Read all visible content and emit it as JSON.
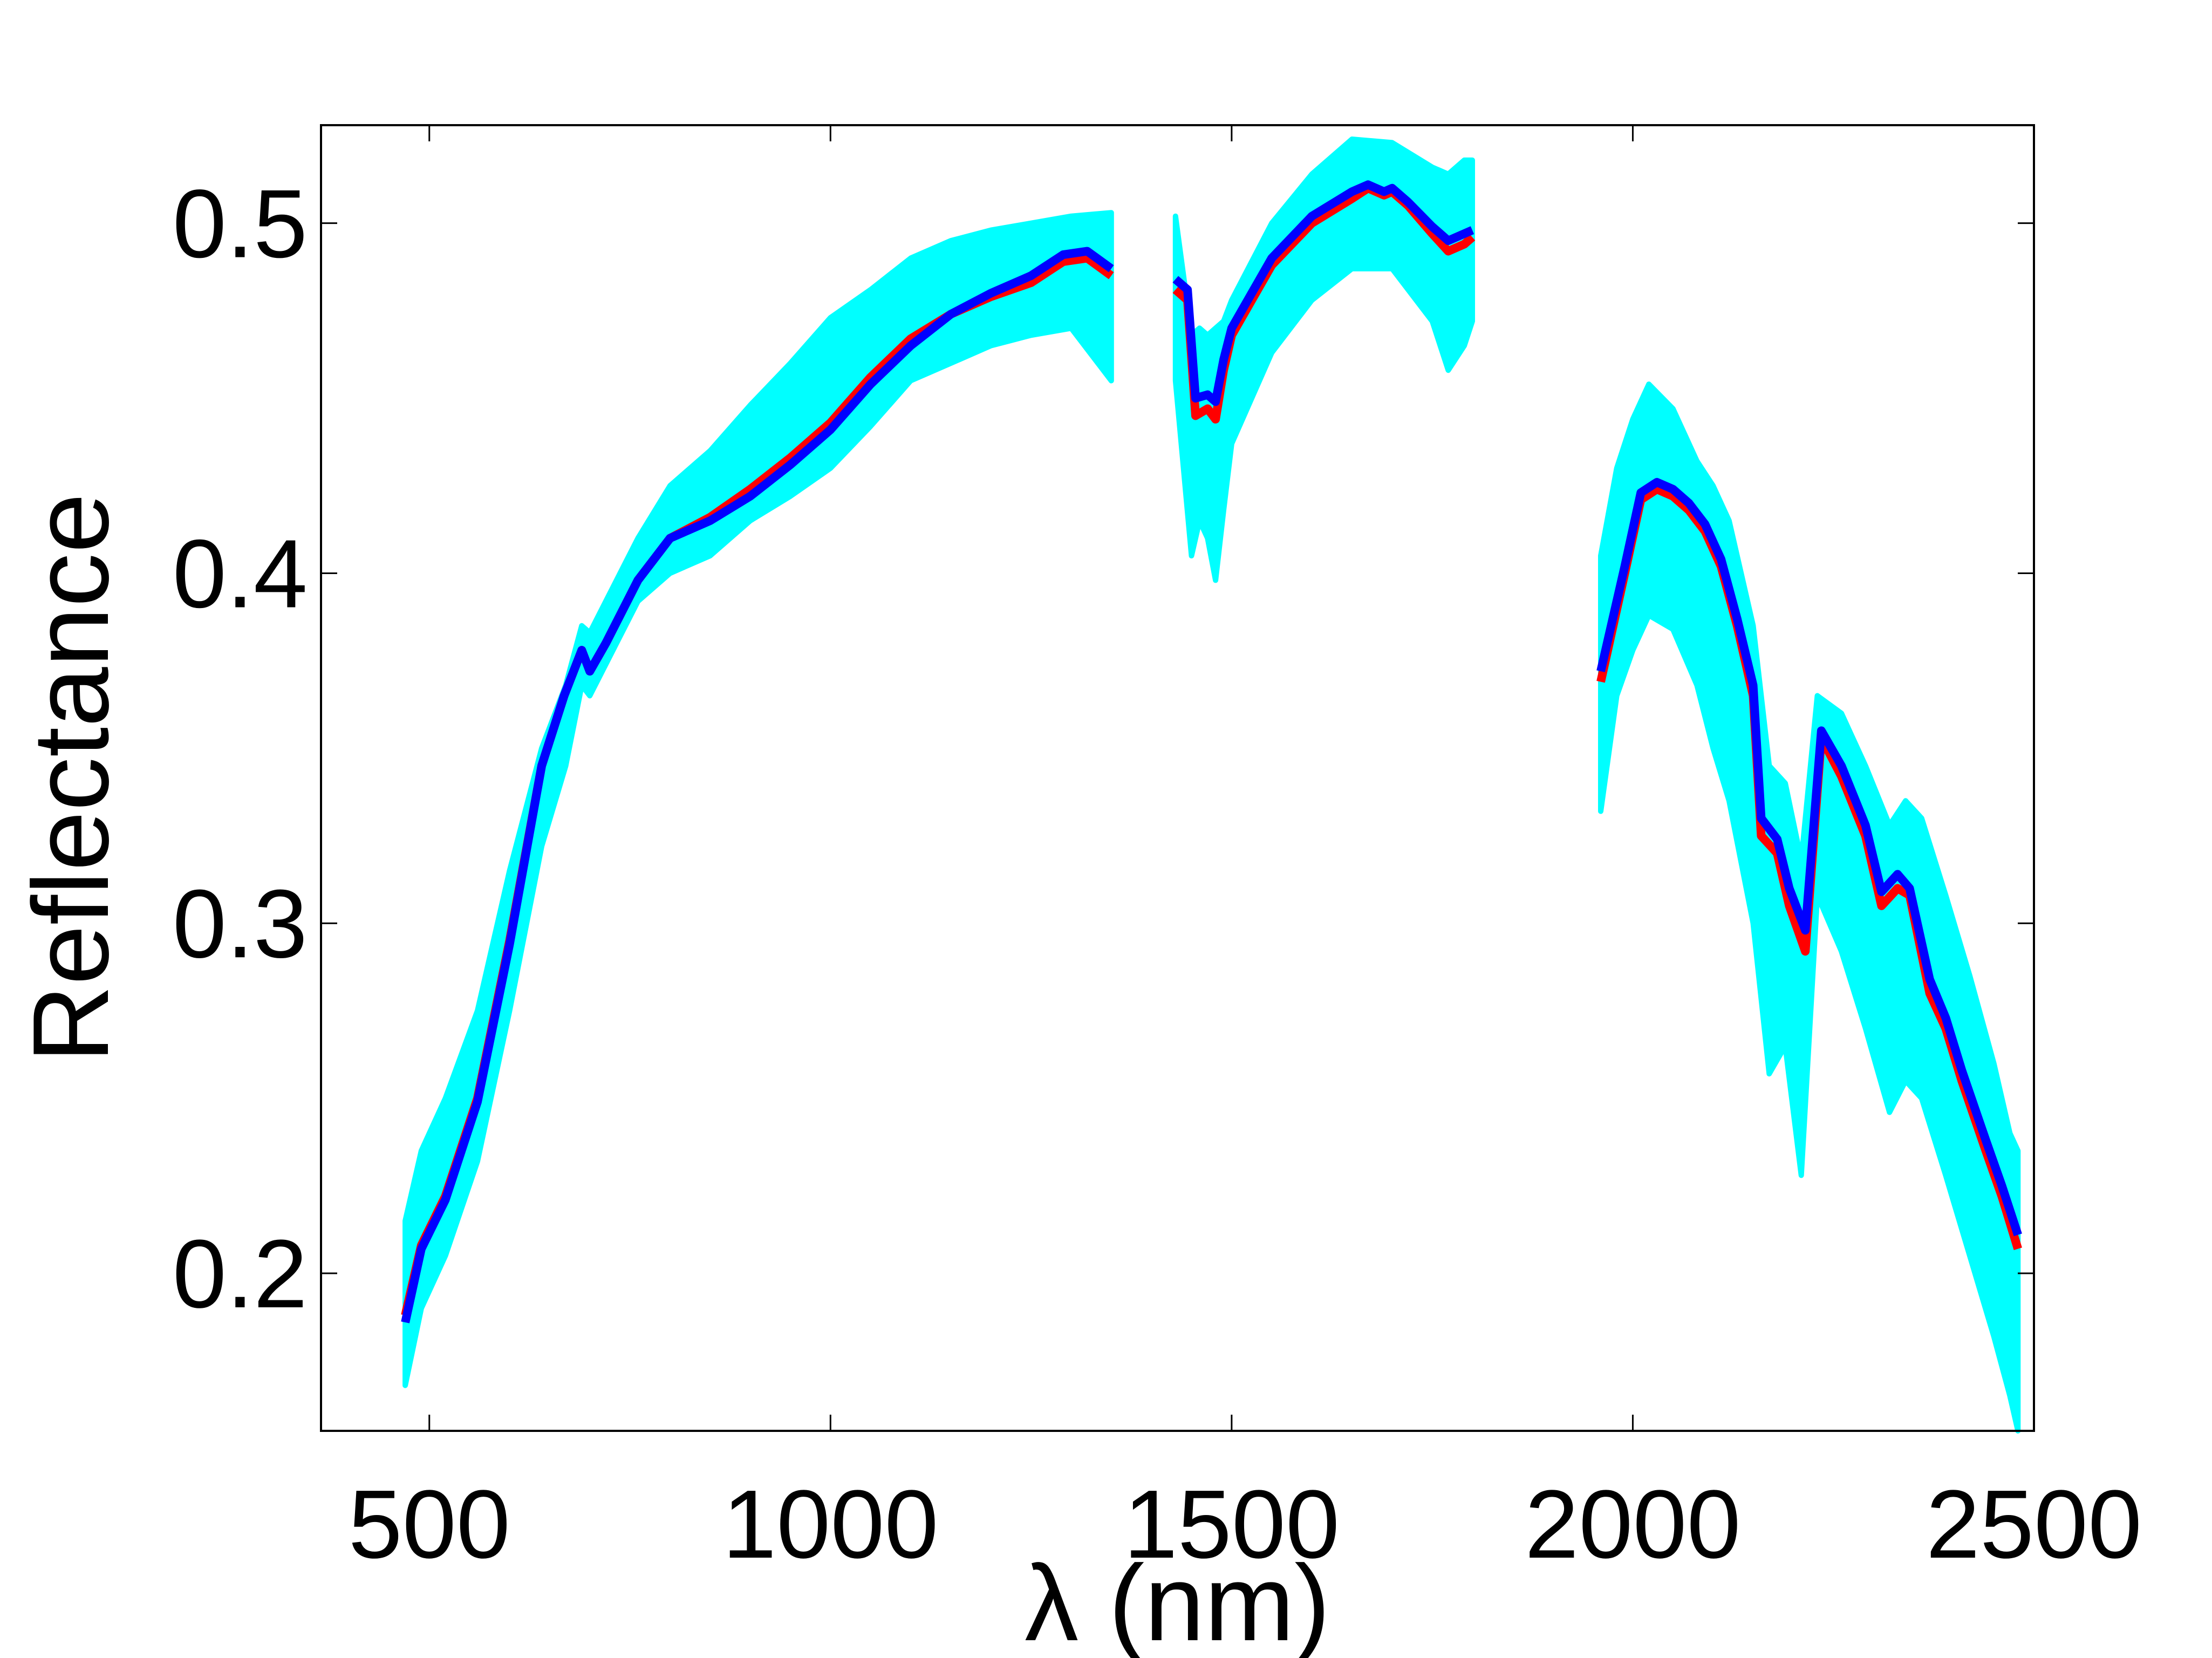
{
  "chart_data": {
    "type": "line",
    "title": "",
    "xlabel": "λ (nm)",
    "ylabel": "Reflectance",
    "xlim": [
      365,
      2500
    ],
    "ylim": [
      0.155,
      0.528
    ],
    "x_ticks": [
      500,
      1000,
      1500,
      2000,
      2500
    ],
    "x_tick_labels": [
      "500",
      "1000",
      "1500",
      "2000",
      "2500"
    ],
    "y_ticks": [
      0.2,
      0.3,
      0.4,
      0.5
    ],
    "y_tick_labels": [
      "0.2",
      "0.3",
      "0.4",
      "0.5"
    ],
    "grid": false,
    "legend": "none",
    "colors": {
      "envelope": "#00ffff",
      "red_series": "#ff0000",
      "blue_series": "#0000ff",
      "axes": "#000000",
      "background": "#ffffff"
    },
    "band_segments": [
      {
        "x": [
          470,
          490,
          520,
          560,
          600,
          640,
          670,
          690,
          700,
          720,
          760,
          800,
          850,
          900,
          950,
          1000,
          1050,
          1100,
          1150,
          1200,
          1250,
          1300,
          1350
        ],
        "upper": [
          0.215,
          0.235,
          0.25,
          0.275,
          0.315,
          0.35,
          0.368,
          0.385,
          0.383,
          0.392,
          0.41,
          0.425,
          0.435,
          0.448,
          0.46,
          0.473,
          0.481,
          0.49,
          0.495,
          0.498,
          0.5,
          0.502,
          0.503
        ],
        "lower": [
          0.168,
          0.19,
          0.205,
          0.232,
          0.275,
          0.322,
          0.345,
          0.368,
          0.365,
          0.374,
          0.392,
          0.4,
          0.405,
          0.415,
          0.422,
          0.43,
          0.442,
          0.455,
          0.46,
          0.465,
          0.468,
          0.47,
          0.455
        ]
      },
      {
        "x": [
          1430,
          1450,
          1460,
          1470,
          1480,
          1490,
          1500,
          1550,
          1600,
          1650,
          1700,
          1750,
          1770,
          1790,
          1800
        ],
        "upper": [
          0.502,
          0.468,
          0.47,
          0.468,
          0.47,
          0.472,
          0.478,
          0.5,
          0.514,
          0.524,
          0.523,
          0.516,
          0.514,
          0.518,
          0.518
        ],
        "lower": [
          0.455,
          0.405,
          0.415,
          0.41,
          0.398,
          0.418,
          0.437,
          0.463,
          0.478,
          0.487,
          0.487,
          0.472,
          0.458,
          0.465,
          0.472
        ]
      },
      {
        "x": [
          1960,
          1980,
          2000,
          2020,
          2050,
          2080,
          2100,
          2120,
          2150,
          2170,
          2190,
          2210,
          2230,
          2260,
          2290,
          2320,
          2340,
          2360,
          2390,
          2420,
          2450,
          2470,
          2480
        ],
        "upper": [
          0.405,
          0.43,
          0.444,
          0.454,
          0.447,
          0.432,
          0.425,
          0.415,
          0.385,
          0.345,
          0.34,
          0.318,
          0.365,
          0.36,
          0.345,
          0.328,
          0.335,
          0.33,
          0.308,
          0.285,
          0.26,
          0.24,
          0.235
        ]
      },
      {
        "x": [
          1960,
          1980,
          2000,
          2020,
          2050,
          2080,
          2100,
          2120,
          2150,
          2170,
          2190,
          2210,
          2230,
          2260,
          2290,
          2320,
          2340,
          2360,
          2390,
          2420,
          2450,
          2470,
          2480
        ],
        "lower": [
          0.332,
          0.365,
          0.378,
          0.388,
          0.384,
          0.368,
          0.35,
          0.335,
          0.3,
          0.257,
          0.265,
          0.228,
          0.308,
          0.292,
          0.27,
          0.246,
          0.255,
          0.25,
          0.228,
          0.205,
          0.182,
          0.165,
          0.155
        ]
      }
    ],
    "series": [
      {
        "color": "#ff0000",
        "segments": [
          {
            "x": [
              470,
              490,
              520,
              560,
              600,
              640,
              668,
              690,
              700,
              720,
              760,
              800,
              850,
              900,
              950,
              1000,
              1050,
              1100,
              1150,
              1200,
              1250,
              1290,
              1320,
              1350
            ],
            "y": [
              0.188,
              0.208,
              0.222,
              0.25,
              0.295,
              0.345,
              0.365,
              0.378,
              0.372,
              0.38,
              0.398,
              0.41,
              0.416,
              0.424,
              0.433,
              0.443,
              0.456,
              0.467,
              0.474,
              0.479,
              0.483,
              0.489,
              0.49,
              0.485
            ]
          },
          {
            "x": [
              1430,
              1445,
              1455,
              1470,
              1480,
              1490,
              1500,
              1550,
              1600,
              1650,
              1670,
              1690,
              1700,
              1720,
              1750,
              1770,
              1790,
              1800
            ],
            "y": [
              0.481,
              0.478,
              0.445,
              0.447,
              0.444,
              0.458,
              0.468,
              0.488,
              0.5,
              0.507,
              0.51,
              0.508,
              0.509,
              0.505,
              0.497,
              0.492,
              0.494,
              0.496
            ]
          },
          {
            "x": [
              1960,
              1990,
              2010,
              2030,
              2050,
              2070,
              2090,
              2110,
              2130,
              2150,
              2160,
              2180,
              2195,
              2215,
              2235,
              2260,
              2290,
              2310,
              2330,
              2345,
              2370,
              2390,
              2410,
              2440,
              2460,
              2480
            ],
            "y": [
              0.369,
              0.4,
              0.421,
              0.424,
              0.422,
              0.418,
              0.412,
              0.402,
              0.385,
              0.365,
              0.325,
              0.32,
              0.305,
              0.292,
              0.353,
              0.342,
              0.325,
              0.305,
              0.31,
              0.308,
              0.28,
              0.27,
              0.255,
              0.235,
              0.222,
              0.207
            ]
          }
        ]
      },
      {
        "color": "#0000ff",
        "segments": [
          {
            "x": [
              470,
              490,
              520,
              560,
              600,
              640,
              668,
              690,
              700,
              720,
              760,
              800,
              850,
              900,
              950,
              1000,
              1050,
              1100,
              1150,
              1200,
              1250,
              1290,
              1320,
              1350
            ],
            "y": [
              0.186,
              0.207,
              0.221,
              0.249,
              0.294,
              0.345,
              0.365,
              0.378,
              0.372,
              0.38,
              0.398,
              0.41,
              0.415,
              0.422,
              0.431,
              0.441,
              0.454,
              0.465,
              0.474,
              0.48,
              0.485,
              0.491,
              0.492,
              0.487
            ]
          },
          {
            "x": [
              1430,
              1445,
              1455,
              1470,
              1480,
              1490,
              1500,
              1550,
              1600,
              1650,
              1670,
              1690,
              1700,
              1720,
              1750,
              1770,
              1790,
              1800
            ],
            "y": [
              0.484,
              0.481,
              0.45,
              0.451,
              0.449,
              0.461,
              0.47,
              0.49,
              0.502,
              0.509,
              0.511,
              0.509,
              0.51,
              0.506,
              0.499,
              0.495,
              0.497,
              0.498
            ]
          },
          {
            "x": [
              1960,
              1990,
              2010,
              2030,
              2050,
              2070,
              2090,
              2110,
              2130,
              2150,
              2160,
              2180,
              2195,
              2215,
              2235,
              2260,
              2290,
              2310,
              2330,
              2345,
              2370,
              2390,
              2410,
              2440,
              2460,
              2480
            ],
            "y": [
              0.372,
              0.402,
              0.423,
              0.426,
              0.424,
              0.42,
              0.414,
              0.404,
              0.387,
              0.368,
              0.33,
              0.324,
              0.31,
              0.298,
              0.355,
              0.345,
              0.328,
              0.309,
              0.314,
              0.31,
              0.284,
              0.273,
              0.258,
              0.238,
              0.225,
              0.211
            ]
          }
        ]
      }
    ]
  }
}
